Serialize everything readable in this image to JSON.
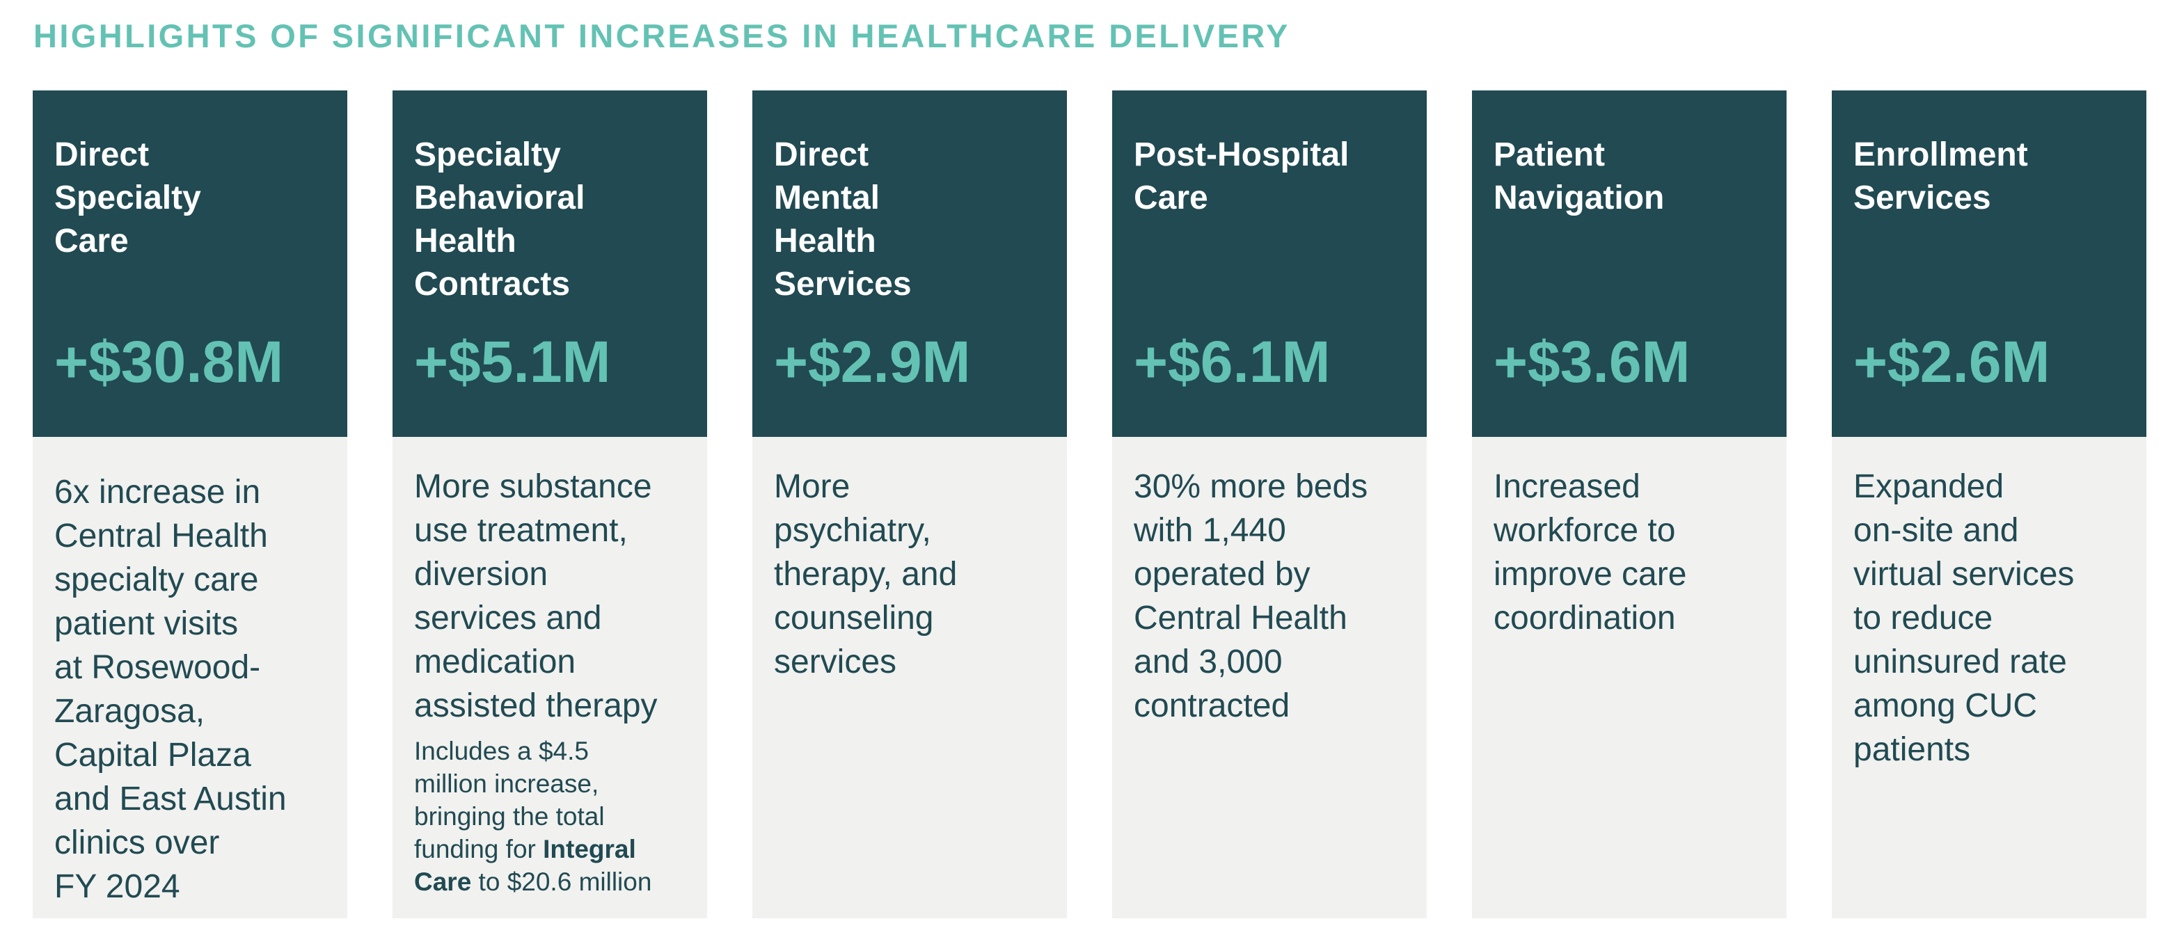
{
  "title": "HIGHLIGHTS OF SIGNIFICANT INCREASES IN HEALTHCARE DELIVERY",
  "cards": [
    {
      "title": "Direct\nSpecialty\nCare",
      "amount": "+$30.8M",
      "description": "6x increase in\nCentral Health\nspecialty care\npatient visits\nat Rosewood-\nZaragosa,\nCapital Plaza\nand East Austin\nclinics over\nFY 2024"
    },
    {
      "title": "Specialty\nBehavioral\nHealth\nContracts",
      "amount": "+$5.1M",
      "description": "More substance\nuse treatment,\ndiversion\nservices and\nmedication\nassisted therapy",
      "note": {
        "line1": "Includes a $4.5",
        "line2": "million increase,",
        "line3": "bringing the total",
        "line4_prefix": "funding for ",
        "line4_bold": "Integral",
        "line5_bold": "Care",
        "line5_suffix": " to $20.6 million"
      }
    },
    {
      "title": "Direct\nMental\nHealth\nServices",
      "amount": "+$2.9M",
      "description": "More\npsychiatry,\ntherapy, and\ncounseling\nservices"
    },
    {
      "title": "Post-Hospital\nCare",
      "amount": "+$6.1M",
      "description": "30% more beds\nwith 1,440\noperated by\nCentral Health\nand 3,000\ncontracted"
    },
    {
      "title": "Patient\nNavigation",
      "amount": "+$3.6M",
      "description": "Increased\nworkforce to\nimprove care\ncoordination"
    },
    {
      "title": "Enrollment\nServices",
      "amount": "+$2.6M",
      "description": "Expanded\non-site and\nvirtual services\nto reduce\nuninsured rate\namong CUC\npatients"
    }
  ],
  "colors": {
    "header_background": "#214a52",
    "accent": "#63c2b3",
    "body_background": "#f1f1ef",
    "body_text": "#214a52"
  }
}
